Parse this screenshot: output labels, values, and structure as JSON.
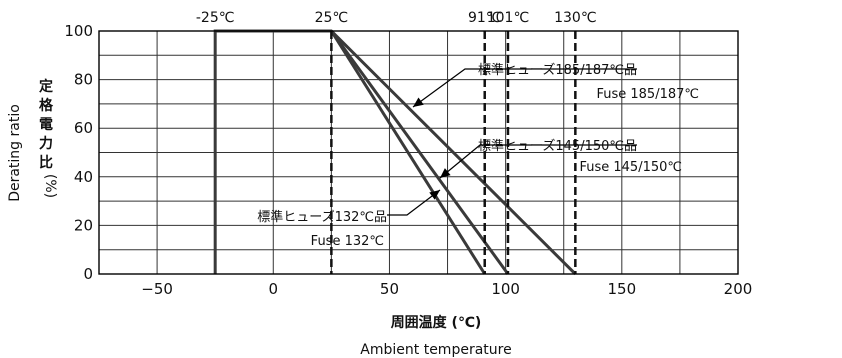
{
  "chart_data": {
    "type": "line",
    "title": "",
    "xlabel_jp": "周囲温度 (℃)",
    "xlabel_en": "Ambient temperature",
    "ylabel_jp": [
      "定",
      "格",
      "電",
      "力",
      "比"
    ],
    "ylabel_unit": "(%)",
    "ylabel_en": "Derating ratio",
    "xlim": [
      -75,
      200
    ],
    "ylim": [
      0,
      100
    ],
    "x_ticks": [
      -50,
      0,
      50,
      100,
      150,
      200
    ],
    "x_tick_labels": [
      "−50",
      "0",
      "50",
      "100",
      "150",
      "200"
    ],
    "y_ticks": [
      0,
      20,
      40,
      60,
      80,
      100
    ],
    "y_tick_labels": [
      "0",
      "20",
      "40",
      "60",
      "80",
      "100"
    ],
    "grid": true,
    "series": [
      {
        "name": "標準ヒューズ185/187℃品 Fuse 185/187℃",
        "x": [
          -25,
          -25,
          25,
          130
        ],
        "y": [
          0,
          100,
          100,
          0
        ]
      },
      {
        "name": "標準ヒューズ145/150℃品 Fuse 145/150℃",
        "x": [
          25,
          101
        ],
        "y": [
          100,
          0
        ]
      },
      {
        "name": "標準ヒューズ132℃品 Fuse 132℃",
        "x": [
          25,
          91
        ],
        "y": [
          100,
          0
        ]
      }
    ],
    "markers": [
      {
        "x": -25,
        "label": "-25℃",
        "style": "solid"
      },
      {
        "x": 25,
        "label": "25℃",
        "style": "dashed"
      },
      {
        "x": 91,
        "label": "91℃",
        "style": "dashed"
      },
      {
        "x": 101,
        "label": "101℃",
        "style": "dashed"
      },
      {
        "x": 130,
        "label": "130℃",
        "style": "dashed"
      }
    ],
    "annotations": [
      {
        "line1": "標準ヒューズ185/187℃品",
        "line2": "Fuse 185/187℃"
      },
      {
        "line1": "標準ヒューズ145/150℃品",
        "line2": "Fuse 145/150℃"
      },
      {
        "line1": "標準ヒューズ132℃品",
        "line2": "Fuse 132℃"
      }
    ]
  }
}
